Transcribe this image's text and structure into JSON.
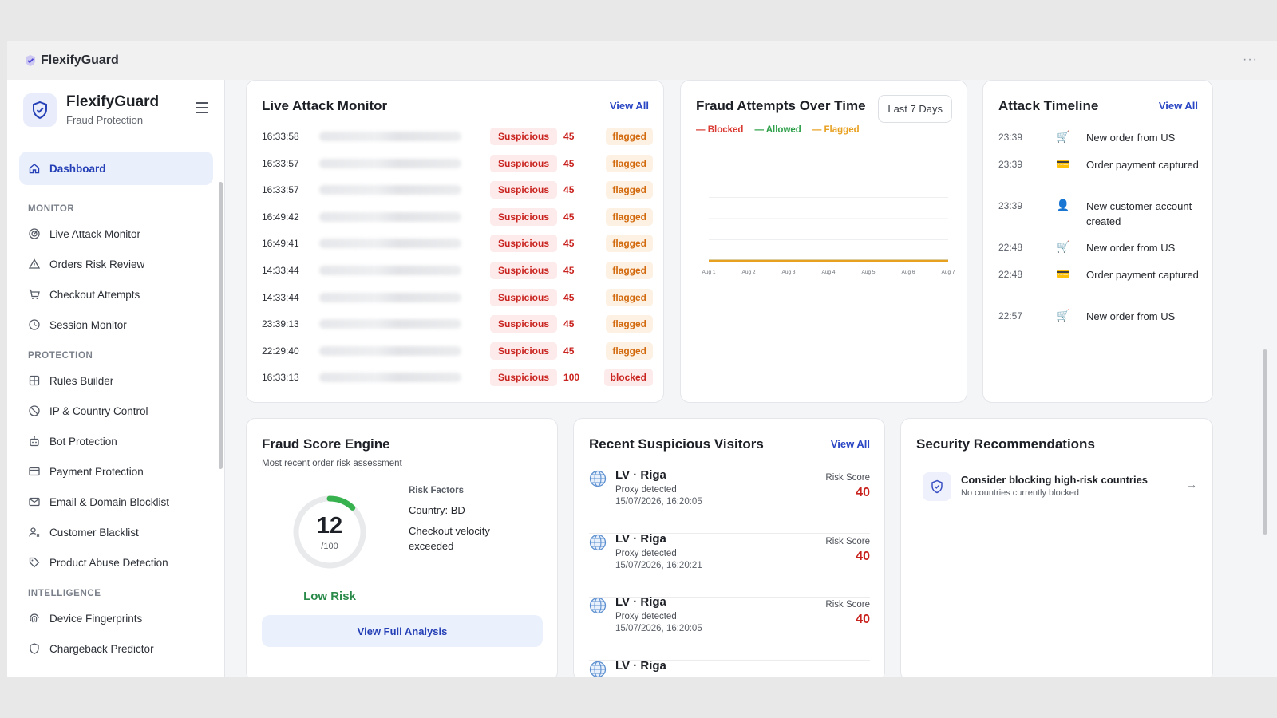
{
  "window": {
    "title": "FlexifyGuard"
  },
  "brand": {
    "name": "FlexifyGuard",
    "subtitle": "Fraud Protection"
  },
  "nav": {
    "dashboard": "Dashboard",
    "sections": [
      {
        "title": "MONITOR",
        "items": [
          {
            "label": "Live Attack Monitor",
            "icon": "radar-icon"
          },
          {
            "label": "Orders Risk Review",
            "icon": "warning-triangle-icon"
          },
          {
            "label": "Checkout Attempts",
            "icon": "cart-icon"
          },
          {
            "label": "Session Monitor",
            "icon": "clock-icon"
          }
        ]
      },
      {
        "title": "PROTECTION",
        "items": [
          {
            "label": "Rules Builder",
            "icon": "grid-icon"
          },
          {
            "label": "IP & Country Control",
            "icon": "globe-block-icon"
          },
          {
            "label": "Bot Protection",
            "icon": "bot-icon"
          },
          {
            "label": "Payment Protection",
            "icon": "credit-card-icon"
          },
          {
            "label": "Email & Domain Blocklist",
            "icon": "mail-icon"
          },
          {
            "label": "Customer Blacklist",
            "icon": "user-x-icon"
          },
          {
            "label": "Product Abuse Detection",
            "icon": "tag-icon"
          }
        ]
      },
      {
        "title": "INTELLIGENCE",
        "items": [
          {
            "label": "Device Fingerprints",
            "icon": "fingerprint-icon"
          },
          {
            "label": "Chargeback Predictor",
            "icon": "shield-icon"
          }
        ]
      }
    ]
  },
  "live_monitor": {
    "title": "Live Attack Monitor",
    "view_all": "View All",
    "rows": [
      {
        "time": "16:33:58",
        "badge": "Suspicious",
        "score": "45",
        "status": "flagged"
      },
      {
        "time": "16:33:57",
        "badge": "Suspicious",
        "score": "45",
        "status": "flagged"
      },
      {
        "time": "16:33:57",
        "badge": "Suspicious",
        "score": "45",
        "status": "flagged"
      },
      {
        "time": "16:49:42",
        "badge": "Suspicious",
        "score": "45",
        "status": "flagged"
      },
      {
        "time": "16:49:41",
        "badge": "Suspicious",
        "score": "45",
        "status": "flagged"
      },
      {
        "time": "14:33:44",
        "badge": "Suspicious",
        "score": "45",
        "status": "flagged"
      },
      {
        "time": "14:33:44",
        "badge": "Suspicious",
        "score": "45",
        "status": "flagged"
      },
      {
        "time": "23:39:13",
        "badge": "Suspicious",
        "score": "45",
        "status": "flagged"
      },
      {
        "time": "22:29:40",
        "badge": "Suspicious",
        "score": "45",
        "status": "flagged"
      },
      {
        "time": "16:33:13",
        "badge": "Suspicious",
        "score": "100",
        "status": "blocked"
      }
    ]
  },
  "fraud_chart": {
    "title": "Fraud Attempts Over Time",
    "range": "Last 7 Days",
    "legend": {
      "blocked": "Blocked",
      "allowed": "Allowed",
      "flagged": "Flagged"
    },
    "colors": {
      "blocked": "#d93a32",
      "allowed": "#2fa04a",
      "flagged": "#e8a020"
    }
  },
  "chart_data": {
    "type": "line",
    "title": "Fraud Attempts Over Time",
    "categories": [
      "Aug 1",
      "Aug 2",
      "Aug 3",
      "Aug 4",
      "Aug 5",
      "Aug 6",
      "Aug 7"
    ],
    "series": [
      {
        "name": "Blocked",
        "values": [
          0,
          0,
          0,
          0,
          0,
          0,
          0
        ]
      },
      {
        "name": "Allowed",
        "values": [
          0,
          0,
          0,
          0,
          0,
          0,
          0
        ]
      },
      {
        "name": "Flagged",
        "values": [
          0,
          0,
          0,
          0,
          0,
          0,
          0
        ]
      }
    ],
    "ylim": [
      0,
      4
    ],
    "grid": true,
    "legend": "top-left"
  },
  "timeline": {
    "title": "Attack Timeline",
    "view_all": "View All",
    "items": [
      {
        "time": "23:39",
        "icon": "cart-icon",
        "text": "New order from US"
      },
      {
        "time": "23:39",
        "icon": "credit-card-icon",
        "text": "Order payment captured"
      },
      {
        "time": "23:39",
        "icon": "user-icon",
        "text": "New customer account created"
      },
      {
        "time": "22:48",
        "icon": "cart-icon",
        "text": "New order from US"
      },
      {
        "time": "22:48",
        "icon": "credit-card-icon",
        "text": "Order payment captured"
      },
      {
        "time": "22:57",
        "icon": "cart-icon",
        "text": "New order from US"
      }
    ]
  },
  "score_engine": {
    "title": "Fraud Score Engine",
    "subtitle": "Most recent order risk assessment",
    "score": "12",
    "max": "/100",
    "score_fraction": 0.12,
    "risk_label": "Low Risk",
    "factors_title": "Risk Factors",
    "factors": [
      "Country: BD",
      "Checkout velocity exceeded"
    ],
    "button": "View Full Analysis"
  },
  "visitors": {
    "title": "Recent Suspicious Visitors",
    "view_all": "View All",
    "risk_label": "Risk Score",
    "rows": [
      {
        "location": "LV · Riga",
        "detail": "Proxy detected",
        "date": "15/07/2026, 16:20:05",
        "score": "40"
      },
      {
        "location": "LV · Riga",
        "detail": "Proxy detected",
        "date": "15/07/2026, 16:20:21",
        "score": "40"
      },
      {
        "location": "LV · Riga",
        "detail": "Proxy detected",
        "date": "15/07/2026, 16:20:05",
        "score": "40"
      },
      {
        "location": "LV · Riga",
        "detail": "",
        "date": "",
        "score": ""
      }
    ]
  },
  "recommendations": {
    "title": "Security Recommendations",
    "items": [
      {
        "title": "Consider blocking high-risk countries",
        "subtitle": "No countries currently blocked"
      }
    ]
  }
}
